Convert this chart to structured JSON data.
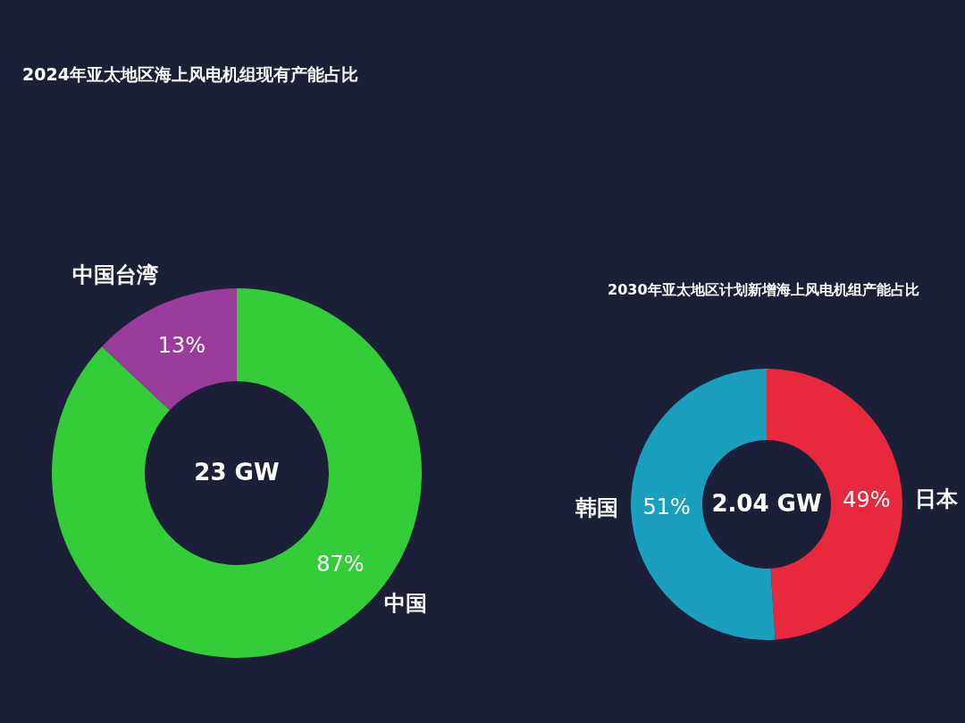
{
  "chart_data": [
    {
      "type": "donut",
      "title": "2024年亚太地区海上风电机组现有产能占比",
      "categories": [
        "中国",
        "中国台湾"
      ],
      "values": [
        87,
        13
      ],
      "colors": [
        "#35cc3a",
        "#9a3c9c"
      ],
      "value_labels": [
        "87%",
        "13%"
      ],
      "annotations": [
        "23 GW"
      ],
      "legend": false
    },
    {
      "type": "donut",
      "title": "2030年亚太地区计划新增海上风电机组产能占比",
      "categories": [
        "日本",
        "韩国"
      ],
      "values": [
        49,
        51
      ],
      "colors": [
        "#e8283c",
        "#1a9fbf"
      ],
      "value_labels": [
        "49%",
        "51%"
      ],
      "annotations": [
        "2.04 GW"
      ],
      "legend": false
    }
  ]
}
